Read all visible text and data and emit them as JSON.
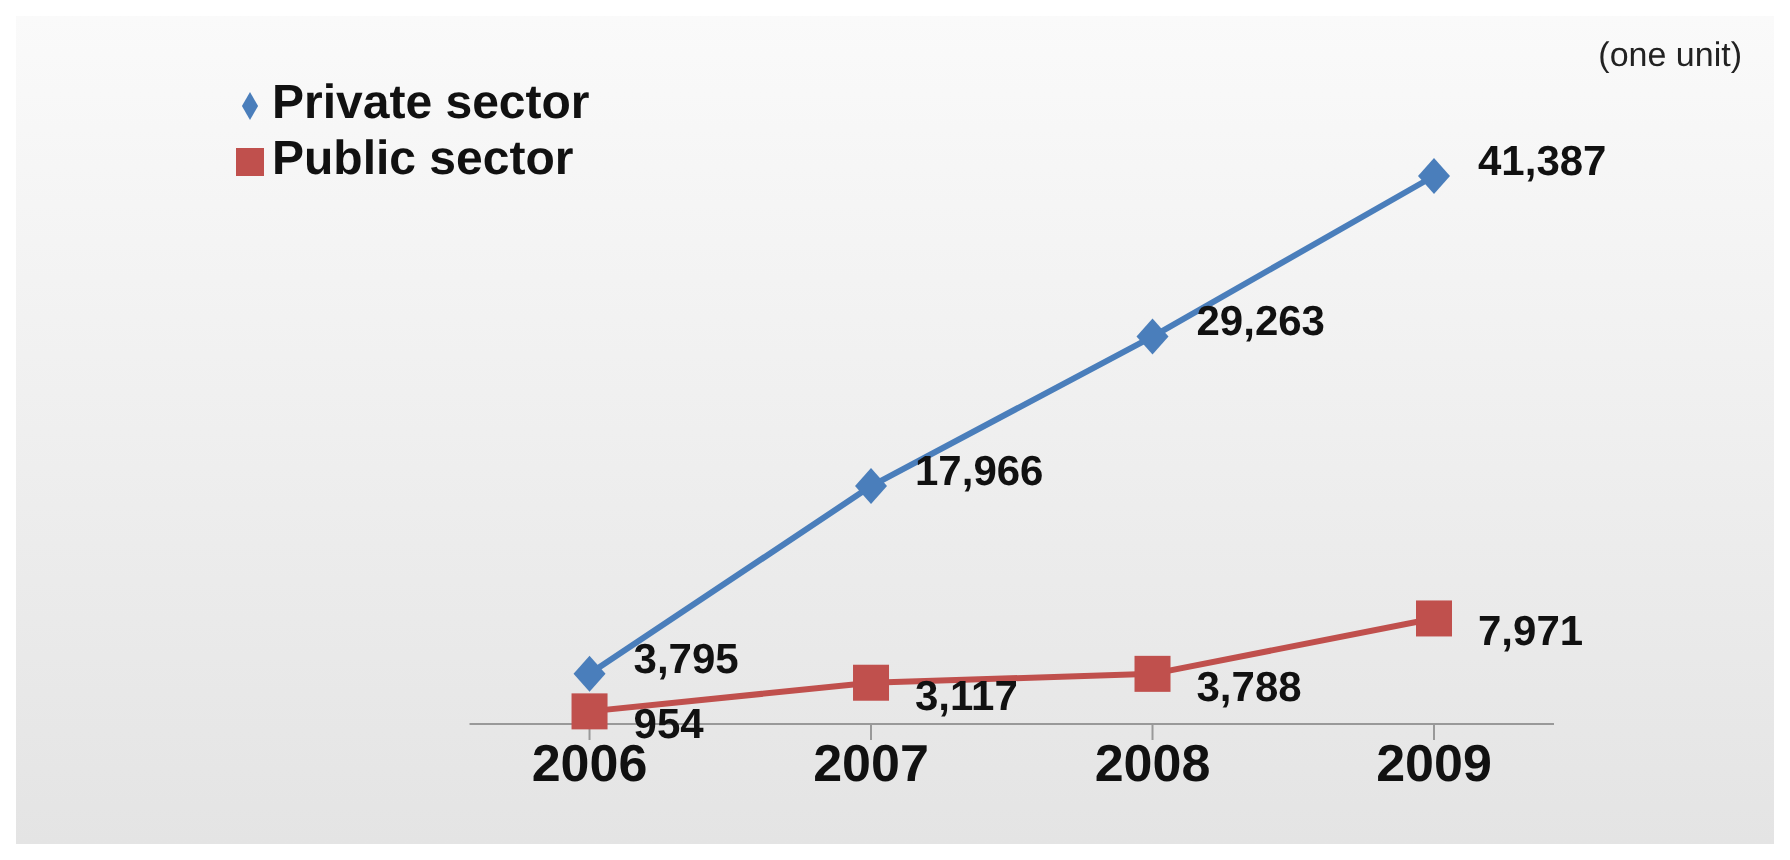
{
  "chart_data": {
    "type": "line",
    "categories": [
      "2006",
      "2007",
      "2008",
      "2009"
    ],
    "series": [
      {
        "name": "Private sector",
        "color": "#4a7ebb",
        "marker": "diamond",
        "values": [
          3795,
          17966,
          29263,
          41387
        ],
        "value_labels": [
          "3,795",
          "17,966",
          "29,263",
          "41,387"
        ]
      },
      {
        "name": "Public sector",
        "color": "#c0504d",
        "marker": "square",
        "values": [
          954,
          3117,
          3788,
          7971
        ],
        "value_labels": [
          "954",
          "3,117",
          "3,788",
          "7,971"
        ]
      }
    ],
    "annotations": [
      "(one unit)"
    ],
    "legend": "top left"
  }
}
